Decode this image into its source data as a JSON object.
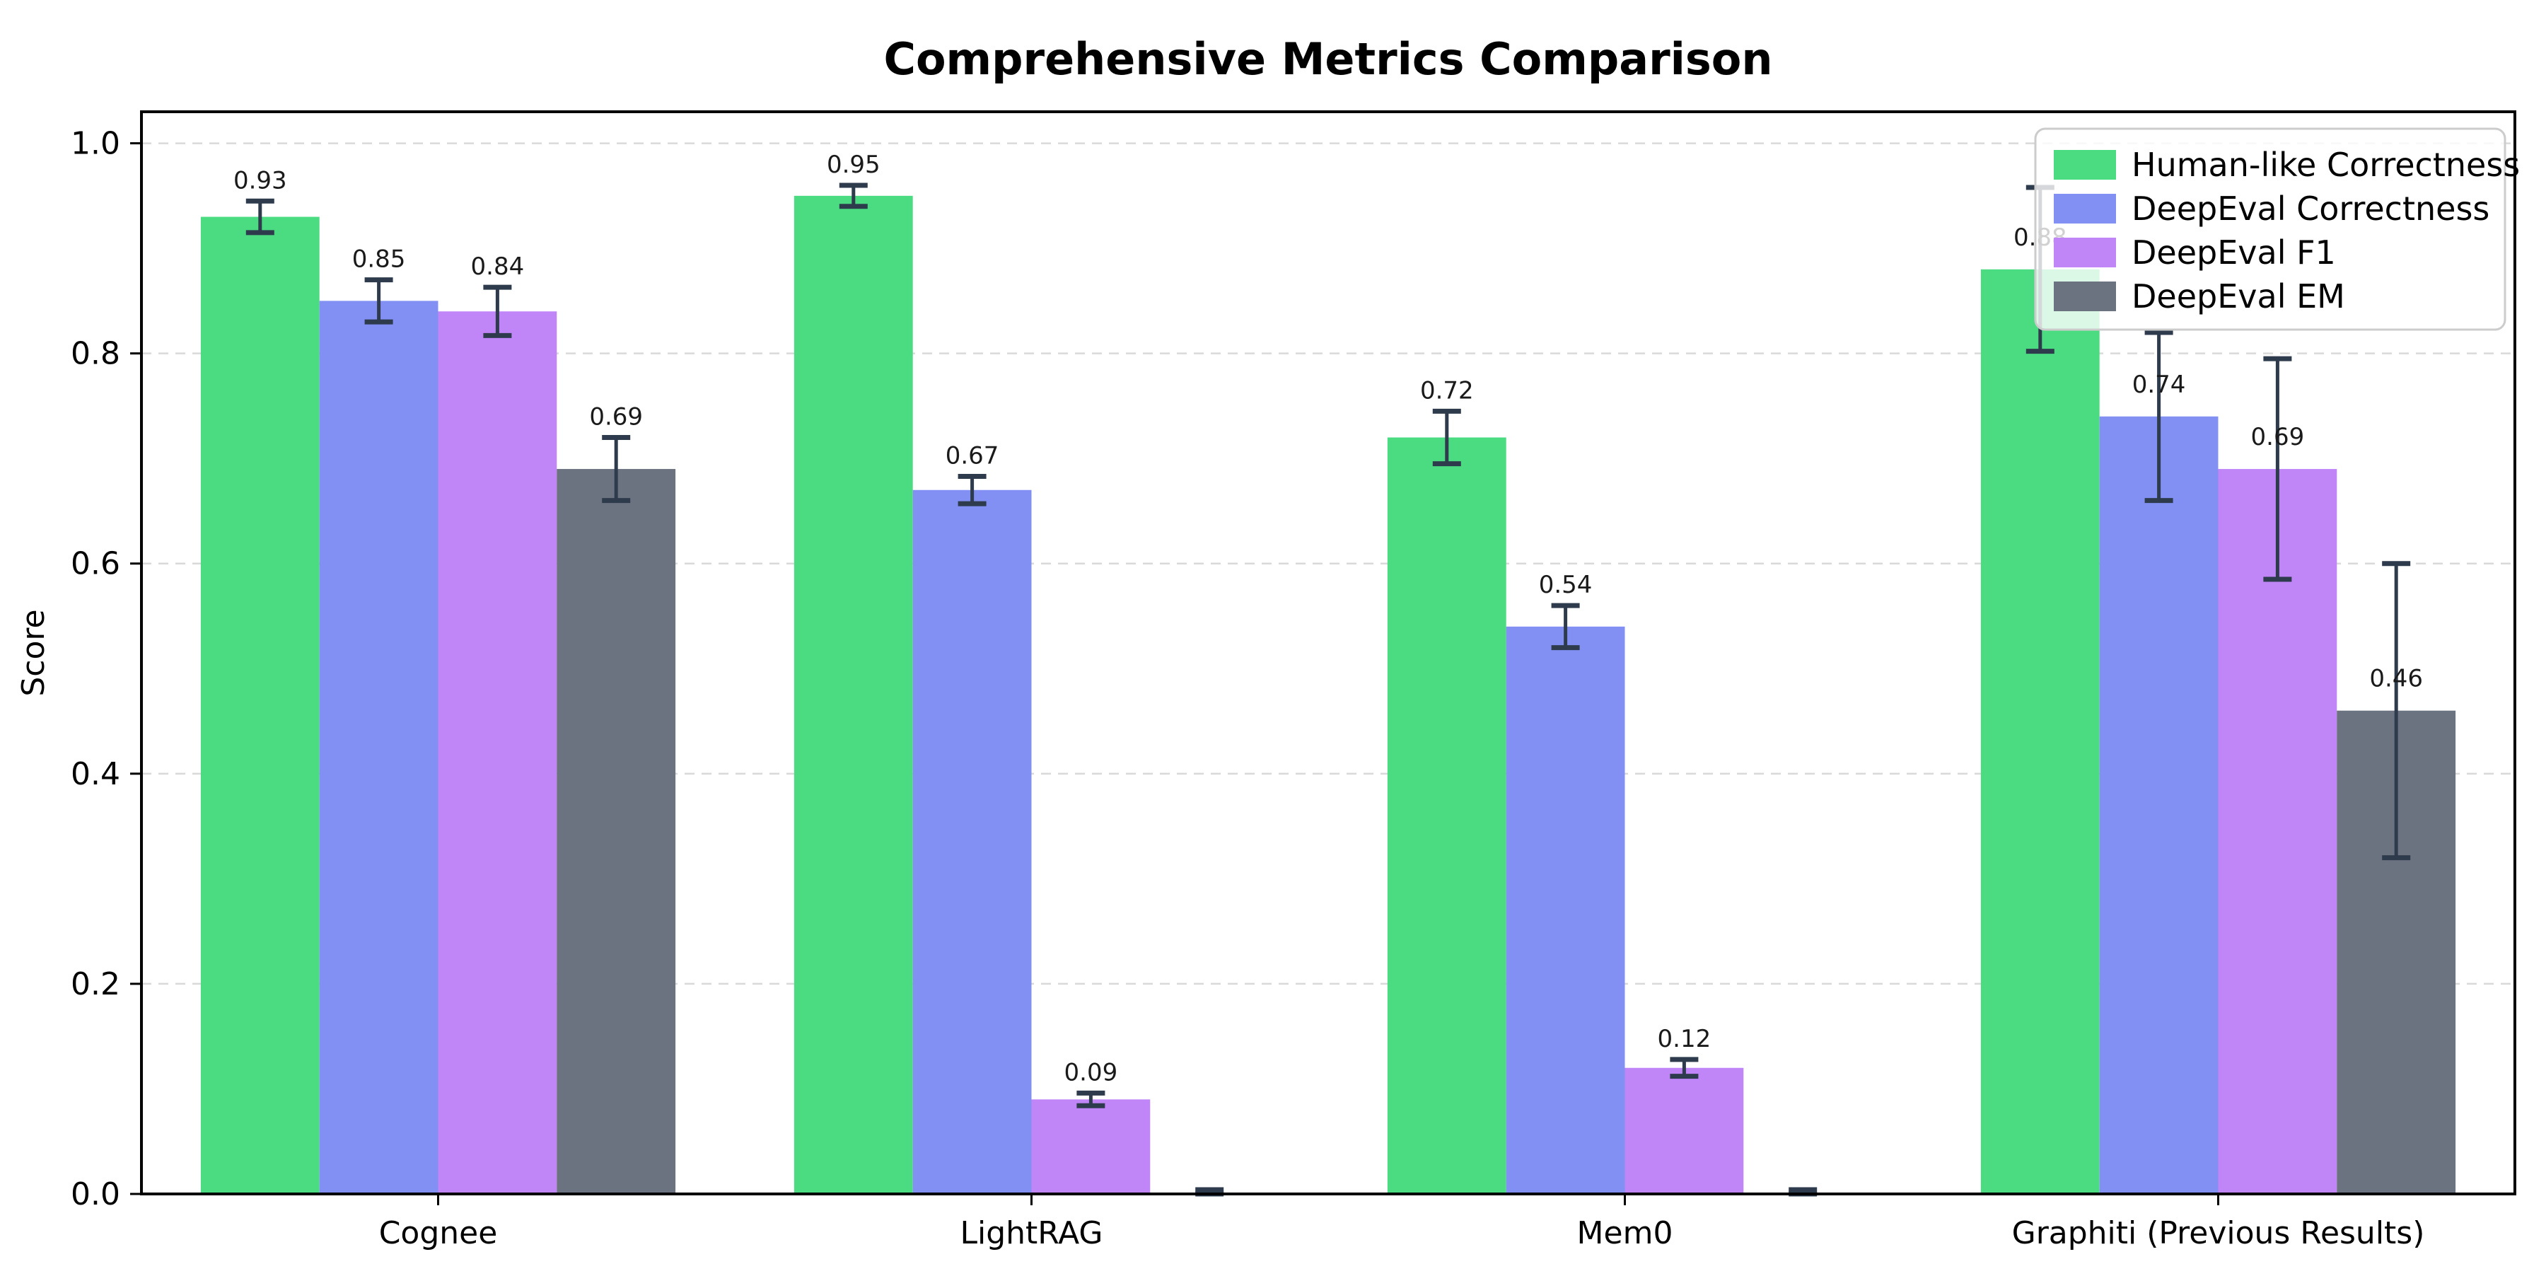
{
  "chart_data": {
    "type": "bar",
    "title": "Comprehensive Metrics Comparison",
    "ylabel": "Score",
    "categories": [
      "Cognee",
      "LightRAG",
      "Mem0",
      "Graphiti (Previous Results)"
    ],
    "series": [
      {
        "name": "Human-like Correctness",
        "color": "#4bdc82",
        "values": [
          0.93,
          0.95,
          0.72,
          0.88
        ],
        "errors": [
          0.015,
          0.01,
          0.025,
          0.078
        ],
        "labels": [
          "0.93",
          "0.95",
          "0.72",
          "0.88"
        ]
      },
      {
        "name": "DeepEval Correctness",
        "color": "#8190f2",
        "values": [
          0.85,
          0.67,
          0.54,
          0.74
        ],
        "errors": [
          0.02,
          0.013,
          0.02,
          0.08
        ],
        "labels": [
          "0.85",
          "0.67",
          "0.54",
          "0.74"
        ]
      },
      {
        "name": "DeepEval F1",
        "color": "#c086f8",
        "values": [
          0.84,
          0.09,
          0.12,
          0.69
        ],
        "errors": [
          0.023,
          0.006,
          0.008,
          0.105
        ],
        "labels": [
          "0.84",
          "0.09",
          "0.12",
          "0.69"
        ]
      },
      {
        "name": "DeepEval EM",
        "color": "#6b7280",
        "values": [
          0.69,
          0.0,
          0.0,
          0.46
        ],
        "errors": [
          0.03,
          0.004,
          0.004,
          0.14
        ],
        "labels": [
          "0.69",
          "",
          "",
          "0.46"
        ]
      }
    ],
    "yticks": [
      "0.0",
      "0.2",
      "0.4",
      "0.6",
      "0.8",
      "1.0"
    ],
    "ylim": [
      0,
      1.03
    ],
    "grid": "horizontal-dashed",
    "legend_position": "upper-right",
    "colors": {
      "error_bar": "#2e3b4c",
      "grid": "#d9d9d9",
      "spine": "#000000",
      "legend_border": "#cccccc",
      "background": "#ffffff"
    }
  }
}
